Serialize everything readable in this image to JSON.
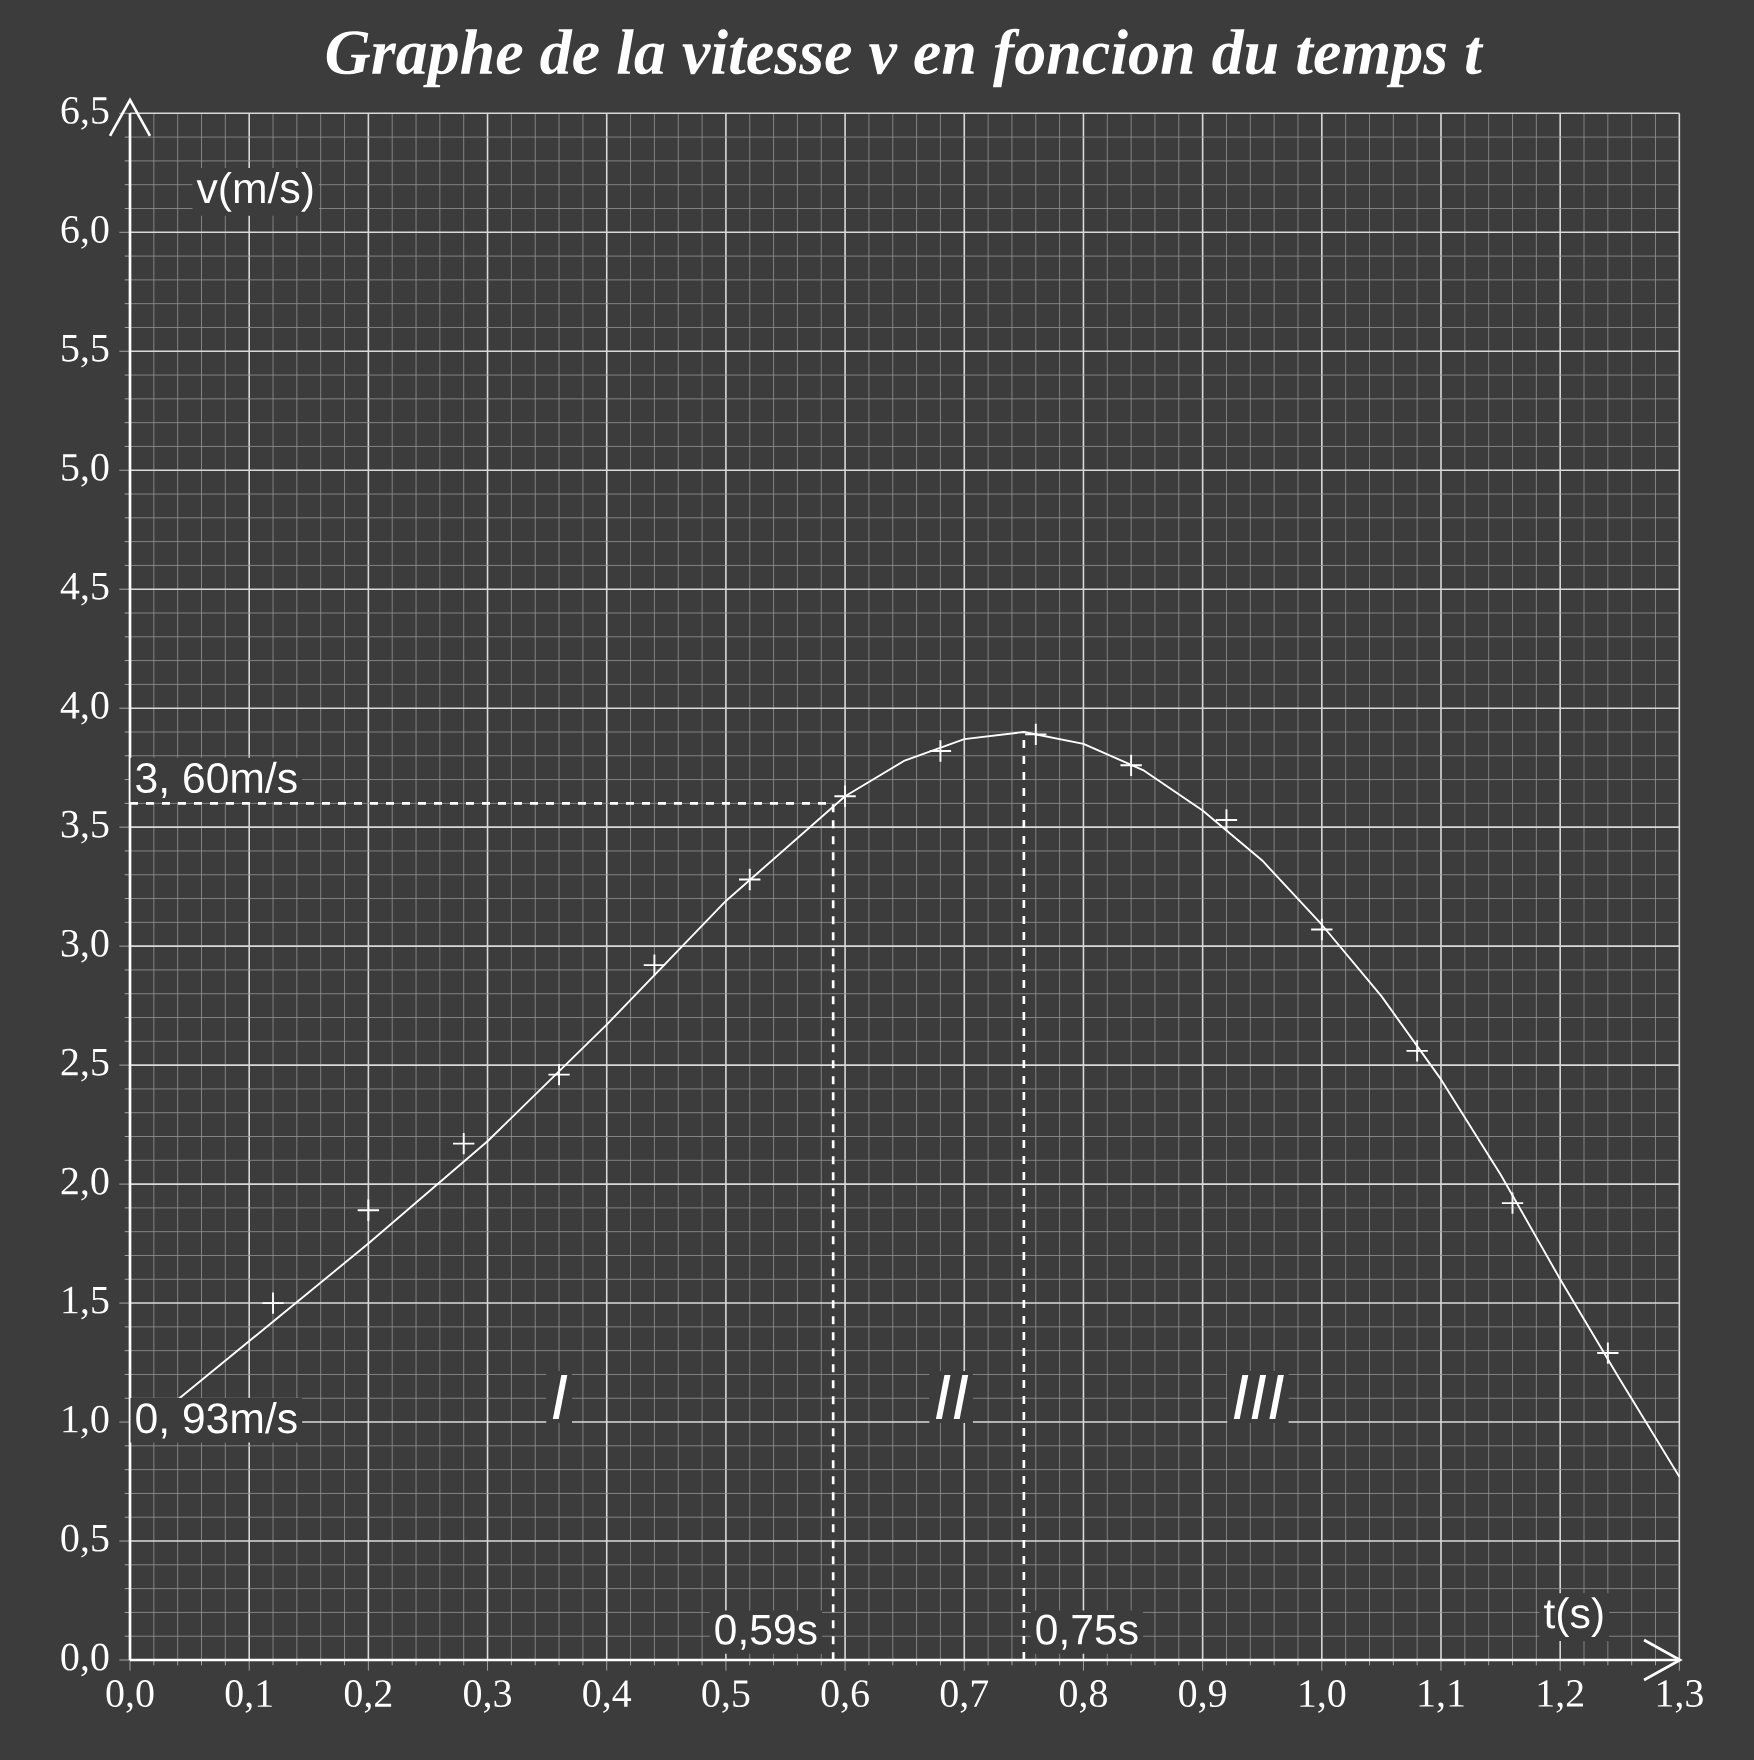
{
  "chart_data": {
    "type": "line",
    "title": "*Graphe de la vitesse v en foncion du temps t*",
    "xlabel": "t(s)",
    "ylabel": "v(m/s)",
    "xlim": [
      0,
      1.3
    ],
    "ylim": [
      0,
      6.5
    ],
    "xticks": [
      {
        "value": 0,
        "label": "0,0"
      },
      {
        "value": 0.1,
        "label": "0,1"
      },
      {
        "value": 0.2,
        "label": "0,2"
      },
      {
        "value": 0.3,
        "label": "0,3"
      },
      {
        "value": 0.4,
        "label": "0,4"
      },
      {
        "value": 0.5,
        "label": "0,5"
      },
      {
        "value": 0.6,
        "label": "0,6"
      },
      {
        "value": 0.7,
        "label": "0,7"
      },
      {
        "value": 0.8,
        "label": "0,8"
      },
      {
        "value": 0.9,
        "label": "0,9"
      },
      {
        "value": 1.0,
        "label": "1,0"
      },
      {
        "value": 1.1,
        "label": "1,1"
      },
      {
        "value": 1.2,
        "label": "1,2"
      },
      {
        "value": 1.3,
        "label": "1,3"
      }
    ],
    "yticks": [
      {
        "value": 0,
        "label": "0,0"
      },
      {
        "value": 0.5,
        "label": "0,5"
      },
      {
        "value": 1.0,
        "label": "1,0"
      },
      {
        "value": 1.5,
        "label": "1,5"
      },
      {
        "value": 2.0,
        "label": "2,0"
      },
      {
        "value": 2.5,
        "label": "2,5"
      },
      {
        "value": 3.0,
        "label": "3,0"
      },
      {
        "value": 3.5,
        "label": "3,5"
      },
      {
        "value": 4.0,
        "label": "4,0"
      },
      {
        "value": 4.5,
        "label": "4,5"
      },
      {
        "value": 5.0,
        "label": "5,0"
      },
      {
        "value": 5.5,
        "label": "5,5"
      },
      {
        "value": 6.0,
        "label": "6,0"
      },
      {
        "value": 6.5,
        "label": "6,5"
      }
    ],
    "grid": true,
    "series": [
      {
        "type": "scatter",
        "color": "#ffffff",
        "marker": "cross",
        "x": [
          0.12,
          0.2,
          0.28,
          0.36,
          0.44,
          0.52,
          0.6,
          0.68,
          0.76,
          0.84,
          0.92,
          1.0,
          1.08,
          1.16,
          1.24
        ],
        "values": [
          1.5,
          1.89,
          2.17,
          2.46,
          2.92,
          3.28,
          3.63,
          3.82,
          3.89,
          3.76,
          3.53,
          3.07,
          2.56,
          1.92,
          1.29
        ]
      },
      {
        "color": "#ffffff",
        "marker": "none",
        "line_style": "solid",
        "x": [
          0,
          0.1,
          0.2,
          0.3,
          0.4,
          0.5,
          0.6,
          0.65,
          0.7,
          0.75,
          0.8,
          0.85,
          0.9,
          0.95,
          1.0,
          1.05,
          1.1,
          1.15,
          1.2,
          1.25,
          1.3
        ],
        "values": [
          0.93,
          1.34,
          1.75,
          2.18,
          2.67,
          3.19,
          3.63,
          3.78,
          3.87,
          3.9,
          3.85,
          3.74,
          3.57,
          3.36,
          3.09,
          2.79,
          2.44,
          2.04,
          1.6,
          1.18,
          0.77
        ]
      },
      {
        "color": "#ffffff",
        "marker": "none",
        "line_style": "dashed",
        "x": [
          0,
          0.59,
          0.59
        ],
        "values": [
          3.6,
          3.6,
          0
        ]
      },
      {
        "color": "#ffffff",
        "marker": "none",
        "line_style": "dashed",
        "x": [
          0.75,
          0.75
        ],
        "values": [
          0,
          3.9
        ]
      }
    ],
    "annotations": [
      "3, 60m/s",
      "0, 93m/s",
      "0,59s",
      "0,75s",
      "I",
      "II",
      "III"
    ]
  }
}
